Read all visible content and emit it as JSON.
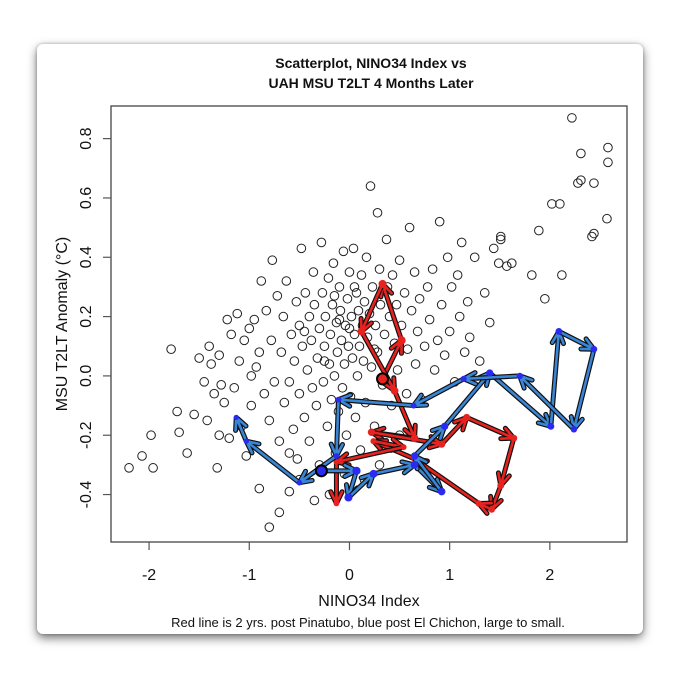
{
  "chart_data": {
    "type": "scatter",
    "title": [
      "Scatterplot, NINO34 Index vs",
      "UAH MSU T2LT 4 Months Later"
    ],
    "xlabel": "NINO34 Index",
    "ylabel": "MSU T2LT Anomaly (°C)",
    "footnote": "Red line is 2 yrs. post Pinatubo, blue post El Chichon, large to small.",
    "xlim": [
      -2.38,
      2.77
    ],
    "ylim": [
      -0.56,
      0.91
    ],
    "xticks": [
      -2,
      -1,
      0,
      1,
      2
    ],
    "xtick_labels": [
      "-2",
      "-1",
      "0",
      "1",
      "2"
    ],
    "yticks": [
      -0.4,
      -0.2,
      0.0,
      0.2,
      0.4,
      0.6,
      0.8
    ],
    "ytick_labels": [
      "-0.4",
      "-0.2",
      "0.0",
      "0.2",
      "0.4",
      "0.6",
      "0.8"
    ],
    "grid": false,
    "points": [
      [
        -2.2,
        -0.31
      ],
      [
        -2.07,
        -0.27
      ],
      [
        -1.98,
        -0.2
      ],
      [
        -1.96,
        -0.31
      ],
      [
        -1.78,
        0.09
      ],
      [
        -1.72,
        -0.12
      ],
      [
        -1.7,
        -0.19
      ],
      [
        -1.62,
        -0.26
      ],
      [
        -1.55,
        -0.13
      ],
      [
        -1.5,
        0.06
      ],
      [
        -1.45,
        -0.02
      ],
      [
        -1.42,
        -0.15
      ],
      [
        -1.4,
        0.1
      ],
      [
        -1.38,
        0.04
      ],
      [
        -1.35,
        -0.06
      ],
      [
        -1.32,
        -0.31
      ],
      [
        -1.3,
        0.07
      ],
      [
        -1.3,
        -0.2
      ],
      [
        -1.28,
        -0.03
      ],
      [
        -1.25,
        -0.09
      ],
      [
        -1.22,
        0.19
      ],
      [
        -1.2,
        -0.21
      ],
      [
        -1.18,
        0.14
      ],
      [
        -1.15,
        -0.04
      ],
      [
        -1.12,
        0.21
      ],
      [
        -1.1,
        0.05
      ],
      [
        -1.08,
        -0.17
      ],
      [
        -1.05,
        0.12
      ],
      [
        -1.03,
        -0.27
      ],
      [
        -1.0,
        0.16
      ],
      [
        -0.98,
        0.0
      ],
      [
        -0.98,
        -0.1
      ],
      [
        -0.95,
        0.19
      ],
      [
        -0.93,
        0.03
      ],
      [
        -0.9,
        -0.38
      ],
      [
        -0.9,
        0.08
      ],
      [
        -0.88,
        0.32
      ],
      [
        -0.85,
        -0.06
      ],
      [
        -0.83,
        0.22
      ],
      [
        -0.8,
        -0.51
      ],
      [
        -0.8,
        -0.15
      ],
      [
        -0.78,
        0.12
      ],
      [
        -0.77,
        0.39
      ],
      [
        -0.75,
        -0.02
      ],
      [
        -0.72,
        0.27
      ],
      [
        -0.7,
        -0.46
      ],
      [
        -0.7,
        -0.22
      ],
      [
        -0.68,
        0.08
      ],
      [
        -0.66,
        0.2
      ],
      [
        -0.65,
        -0.09
      ],
      [
        -0.63,
        0.32
      ],
      [
        -0.6,
        -0.02
      ],
      [
        -0.6,
        -0.39
      ],
      [
        -0.58,
        0.14
      ],
      [
        -0.56,
        -0.18
      ],
      [
        -0.55,
        0.05
      ],
      [
        -0.53,
        0.25
      ],
      [
        -0.52,
        -0.28
      ],
      [
        -0.5,
        0.17
      ],
      [
        -0.5,
        -0.06
      ],
      [
        -0.48,
        0.43
      ],
      [
        -0.47,
        0.1
      ],
      [
        -0.45,
        -0.14
      ],
      [
        -0.44,
        0.28
      ],
      [
        -0.42,
        0.02
      ],
      [
        -0.4,
        -0.22
      ],
      [
        -0.4,
        0.2
      ],
      [
        -0.38,
        0.12
      ],
      [
        -0.37,
        -0.04
      ],
      [
        -0.36,
        0.35
      ],
      [
        -0.35,
        0.24
      ],
      [
        -0.33,
        -0.1
      ],
      [
        -0.32,
        0.06
      ],
      [
        -0.3,
        0.16
      ],
      [
        -0.3,
        -0.3
      ],
      [
        -0.28,
        0.45
      ],
      [
        -0.27,
        0.28
      ],
      [
        -0.26,
        -0.02
      ],
      [
        -0.25,
        0.1
      ],
      [
        -0.24,
        0.2
      ],
      [
        -0.22,
        -0.17
      ],
      [
        -0.21,
        0.33
      ],
      [
        -0.2,
        0.04
      ],
      [
        -0.19,
        0.14
      ],
      [
        -0.18,
        -0.08
      ],
      [
        -0.17,
        0.24
      ],
      [
        -0.16,
        0.38
      ],
      [
        -0.15,
        0.0
      ],
      [
        -0.14,
        -0.26
      ],
      [
        -0.13,
        0.18
      ],
      [
        -0.12,
        0.08
      ],
      [
        -0.11,
        -0.12
      ],
      [
        -0.1,
        0.3
      ],
      [
        -0.09,
        0.22
      ],
      [
        -0.08,
        0.12
      ],
      [
        -0.07,
        -0.04
      ],
      [
        -0.06,
        0.42
      ],
      [
        -0.05,
        0.04
      ],
      [
        -0.04,
        0.17
      ],
      [
        -0.03,
        -0.2
      ],
      [
        -0.02,
        0.26
      ],
      [
        -0.01,
        0.1
      ],
      [
        0.0,
        0.35
      ],
      [
        0.01,
        -0.07
      ],
      [
        0.02,
        0.2
      ],
      [
        0.03,
        0.06
      ],
      [
        0.04,
        0.43
      ],
      [
        0.05,
        0.14
      ],
      [
        0.06,
        -0.14
      ],
      [
        0.07,
        0.28
      ],
      [
        0.08,
        0.0
      ],
      [
        0.09,
        0.22
      ],
      [
        0.1,
        0.1
      ],
      [
        0.11,
        -0.25
      ],
      [
        0.12,
        0.34
      ],
      [
        0.13,
        0.17
      ],
      [
        0.14,
        0.05
      ],
      [
        0.15,
        0.25
      ],
      [
        0.16,
        -0.09
      ],
      [
        0.17,
        0.4
      ],
      [
        0.18,
        0.13
      ],
      [
        0.2,
        0.21
      ],
      [
        0.21,
        0.64
      ],
      [
        0.22,
        0.03
      ],
      [
        0.23,
        0.3
      ],
      [
        0.25,
        -0.17
      ],
      [
        0.26,
        0.17
      ],
      [
        0.28,
        0.55
      ],
      [
        0.28,
        0.08
      ],
      [
        0.3,
        0.36
      ],
      [
        0.31,
        0.24
      ],
      [
        0.33,
        -0.03
      ],
      [
        0.35,
        0.14
      ],
      [
        0.37,
        0.46
      ],
      [
        0.38,
        0.3
      ],
      [
        0.4,
        0.2
      ],
      [
        0.42,
        -0.1
      ],
      [
        0.43,
        0.34
      ],
      [
        0.45,
        0.11
      ],
      [
        0.47,
        0.24
      ],
      [
        0.48,
        0.02
      ],
      [
        0.5,
        0.39
      ],
      [
        0.52,
        0.17
      ],
      [
        0.55,
        0.28
      ],
      [
        0.57,
        -0.06
      ],
      [
        0.58,
        0.09
      ],
      [
        0.6,
        0.5
      ],
      [
        0.62,
        0.22
      ],
      [
        0.65,
        0.35
      ],
      [
        0.66,
        0.04
      ],
      [
        0.68,
        0.15
      ],
      [
        0.7,
        0.26
      ],
      [
        0.72,
        -0.08
      ],
      [
        0.75,
        0.1
      ],
      [
        0.78,
        0.3
      ],
      [
        0.8,
        0.19
      ],
      [
        0.83,
        0.36
      ],
      [
        0.85,
        0.02
      ],
      [
        0.88,
        0.12
      ],
      [
        0.9,
        0.52
      ],
      [
        0.92,
        0.24
      ],
      [
        0.95,
        0.07
      ],
      [
        0.98,
        0.4
      ],
      [
        1.0,
        0.15
      ],
      [
        1.02,
        0.3
      ],
      [
        1.05,
        -0.02
      ],
      [
        1.08,
        0.34
      ],
      [
        1.1,
        0.2
      ],
      [
        1.12,
        0.45
      ],
      [
        1.15,
        0.08
      ],
      [
        1.18,
        0.25
      ],
      [
        1.2,
        0.13
      ],
      [
        1.25,
        0.4
      ],
      [
        1.3,
        0.05
      ],
      [
        1.35,
        0.28
      ],
      [
        1.4,
        0.18
      ],
      [
        1.44,
        0.43
      ],
      [
        1.49,
        0.38
      ],
      [
        1.51,
        0.46
      ],
      [
        1.51,
        0.47
      ],
      [
        1.57,
        0.37
      ],
      [
        1.62,
        0.38
      ],
      [
        1.82,
        0.34
      ],
      [
        1.89,
        0.49
      ],
      [
        1.95,
        0.26
      ],
      [
        2.02,
        0.58
      ],
      [
        2.1,
        0.58
      ],
      [
        2.12,
        0.34
      ],
      [
        2.22,
        0.87
      ],
      [
        2.28,
        0.65
      ],
      [
        2.31,
        0.75
      ],
      [
        2.31,
        0.66
      ],
      [
        2.42,
        0.47
      ],
      [
        2.44,
        0.65
      ],
      [
        2.44,
        0.48
      ],
      [
        2.57,
        0.53
      ],
      [
        2.58,
        0.77
      ],
      [
        2.58,
        0.72
      ],
      [
        -0.05,
        -0.33
      ],
      [
        -0.2,
        -0.4
      ],
      [
        0.15,
        -0.35
      ],
      [
        0.3,
        -0.3
      ],
      [
        -0.35,
        -0.42
      ],
      [
        -0.5,
        -0.35
      ],
      [
        0.5,
        -0.2
      ],
      [
        -0.6,
        -0.26
      ],
      [
        0.25,
        0.09
      ],
      [
        -0.1,
        0.19
      ],
      [
        0.05,
        0.3
      ],
      [
        -0.25,
        0.05
      ],
      [
        0.0,
        0.16
      ],
      [
        -0.45,
        0.15
      ],
      [
        -0.15,
        0.27
      ]
    ],
    "paths": [
      {
        "color": "#e8231f",
        "points": [
          [
            0.33,
            -0.01
          ],
          [
            0.52,
            0.12
          ],
          [
            0.33,
            0.31
          ],
          [
            0.12,
            0.15
          ],
          [
            0.45,
            -0.05
          ],
          [
            0.65,
            -0.21
          ],
          [
            0.22,
            -0.19
          ],
          [
            0.92,
            -0.23
          ],
          [
            1.17,
            -0.14
          ],
          [
            1.64,
            -0.21
          ],
          [
            1.51,
            -0.37
          ],
          [
            1.42,
            -0.45
          ],
          [
            1.29,
            -0.43
          ],
          [
            0.65,
            -0.28
          ],
          [
            0.24,
            -0.22
          ],
          [
            0.54,
            -0.24
          ],
          [
            -0.13,
            -0.29
          ],
          [
            -0.13,
            -0.43
          ]
        ]
      },
      {
        "color": "#3a86d6",
        "point_color": "#2b2bf0",
        "points": [
          [
            -0.28,
            -0.32
          ],
          [
            0.07,
            -0.32
          ],
          [
            -0.01,
            -0.41
          ],
          [
            0.24,
            -0.33
          ],
          [
            0.65,
            -0.3
          ],
          [
            0.92,
            -0.39
          ],
          [
            0.65,
            -0.27
          ],
          [
            0.95,
            -0.17
          ],
          [
            1.4,
            0.01
          ],
          [
            2.01,
            -0.17
          ],
          [
            2.09,
            0.15
          ],
          [
            2.44,
            0.09
          ],
          [
            2.24,
            -0.18
          ],
          [
            1.7,
            0.0
          ],
          [
            1.14,
            -0.01
          ],
          [
            0.64,
            -0.1
          ],
          [
            -0.11,
            -0.08
          ],
          [
            -0.13,
            -0.27
          ],
          [
            -0.5,
            -0.36
          ],
          [
            -1.03,
            -0.22
          ],
          [
            -1.13,
            -0.14
          ]
        ]
      }
    ]
  }
}
